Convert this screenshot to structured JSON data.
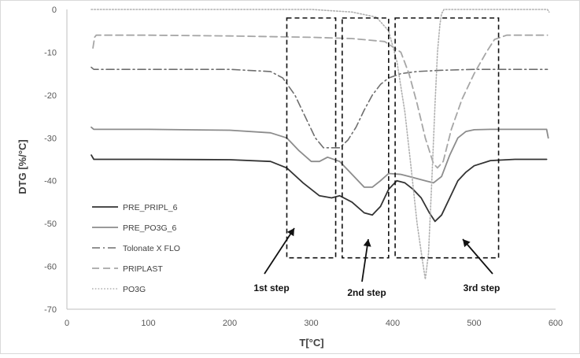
{
  "chart_data": {
    "type": "line",
    "title": "",
    "xlabel": "T[°C]",
    "ylabel": "DTG [%/°C]",
    "xlim": [
      0,
      600
    ],
    "ylim": [
      -70,
      0
    ],
    "x_ticks": [
      "0",
      "100",
      "200",
      "300",
      "400",
      "500",
      "600"
    ],
    "y_ticks": [
      "0",
      "-10",
      "-20",
      "-30",
      "-40",
      "-50",
      "-60",
      "-70"
    ],
    "grid": false,
    "legend_position": "left",
    "colors": {
      "PRE_PRIPL_6": "#333333",
      "PRE_PO3G_6": "#8c8c8c",
      "Tolonate X FLO": "#6e6e6e",
      "PRIPLAST": "#a6a6a6",
      "PO3G": "#b0b0b0"
    },
    "series": [
      {
        "name": "PRE_PRIPL_6",
        "style": "solid",
        "x": [
          30,
          33,
          40,
          100,
          200,
          250,
          270,
          290,
          310,
          325,
          335,
          350,
          365,
          375,
          385,
          395,
          405,
          415,
          425,
          435,
          445,
          452,
          460,
          470,
          480,
          490,
          500,
          520,
          550,
          589
        ],
        "y": [
          -34,
          -35,
          -35,
          -35,
          -35.1,
          -35.5,
          -37,
          -40.5,
          -43.5,
          -44,
          -43.5,
          -45,
          -47.5,
          -48,
          -46,
          -42,
          -40,
          -40.5,
          -42,
          -44,
          -47.5,
          -49.5,
          -48,
          -44,
          -40,
          -38,
          -36.5,
          -35.3,
          -35,
          -35
        ]
      },
      {
        "name": "PRE_PO3G_6",
        "style": "solid",
        "x": [
          30,
          33,
          40,
          100,
          200,
          250,
          270,
          285,
          300,
          310,
          320,
          335,
          350,
          365,
          375,
          385,
          395,
          410,
          420,
          430,
          440,
          450,
          460,
          470,
          480,
          490,
          500,
          520,
          560,
          589,
          591
        ],
        "y": [
          -27.5,
          -28,
          -28,
          -28,
          -28.2,
          -28.8,
          -30,
          -33,
          -35.5,
          -35.5,
          -34.5,
          -35.5,
          -38.5,
          -41.5,
          -41.5,
          -40,
          -38.3,
          -38.5,
          -39,
          -39.5,
          -40,
          -40.5,
          -39,
          -34,
          -30,
          -28.5,
          -28.1,
          -28,
          -28,
          -28,
          -30
        ]
      },
      {
        "name": "Tolonate X FLO",
        "style": "dashdot",
        "x": [
          30,
          33,
          100,
          200,
          250,
          265,
          280,
          290,
          305,
          315,
          325,
          335,
          345,
          355,
          365,
          375,
          385,
          395,
          410,
          430,
          460,
          500,
          550,
          590
        ],
        "y": [
          -13.5,
          -14,
          -14,
          -14,
          -14.5,
          -16,
          -20,
          -24,
          -30,
          -32.3,
          -32.3,
          -32.3,
          -30.5,
          -27.5,
          -23.5,
          -20,
          -17.5,
          -16,
          -15,
          -14.5,
          -14.2,
          -14,
          -14,
          -14
        ]
      },
      {
        "name": "PRIPLAST",
        "style": "dashed",
        "x": [
          32,
          34,
          36,
          100,
          200,
          300,
          350,
          390,
          410,
          420,
          430,
          440,
          450,
          455,
          462,
          472,
          485,
          500,
          515,
          525,
          540,
          560,
          590
        ],
        "y": [
          -9,
          -6.5,
          -6,
          -6,
          -6.2,
          -6.5,
          -6.8,
          -7.5,
          -10,
          -15,
          -22,
          -30,
          -36,
          -37,
          -35.5,
          -28,
          -21,
          -15,
          -10,
          -7,
          -6,
          -6,
          -6
        ]
      },
      {
        "name": "PO3G",
        "style": "dotted",
        "x": [
          30,
          100,
          200,
          300,
          350,
          380,
          395,
          405,
          415,
          422,
          430,
          436,
          440,
          444,
          448,
          452,
          455,
          458,
          460,
          463,
          470,
          500,
          550,
          590,
          592
        ],
        "y": [
          0,
          0,
          0,
          0,
          -0.6,
          -1.8,
          -5,
          -12,
          -24,
          -36,
          -50,
          -58,
          -63,
          -57,
          -40,
          -22,
          -10,
          -3.5,
          -1,
          0,
          0,
          0,
          0,
          0,
          -0.6
        ]
      }
    ],
    "steps": [
      {
        "label": "1st step",
        "x_range": [
          270,
          330
        ],
        "y_range": [
          -2,
          -58
        ]
      },
      {
        "label": "2nd step",
        "x_range": [
          338,
          395
        ],
        "y_range": [
          -2,
          -58
        ]
      },
      {
        "label": "3rd step",
        "x_range": [
          403,
          530
        ],
        "y_range": [
          -2,
          -58
        ]
      }
    ]
  }
}
